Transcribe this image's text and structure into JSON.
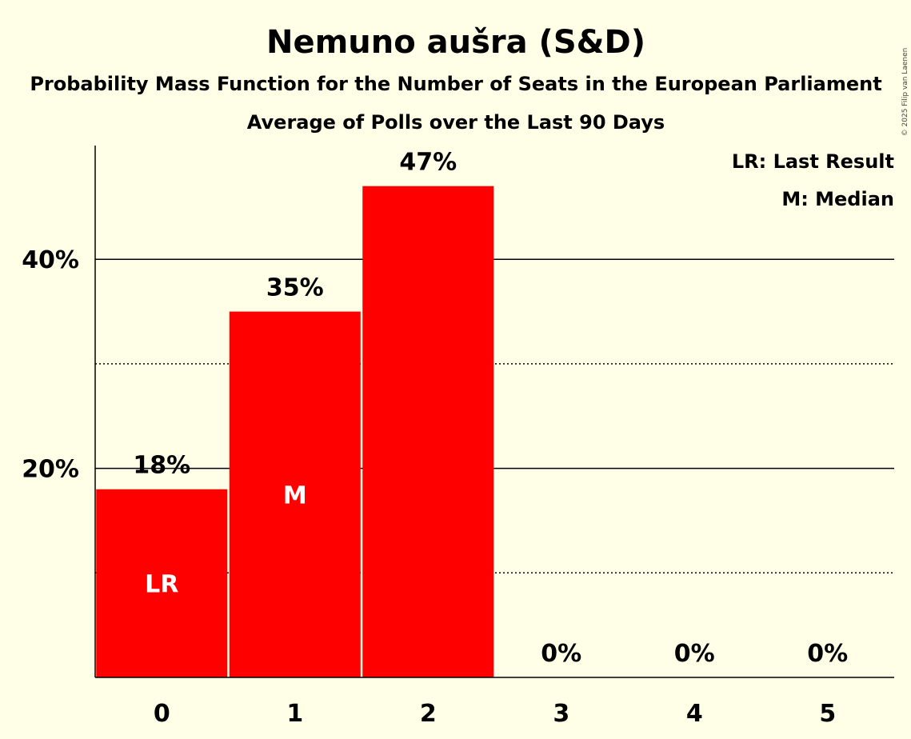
{
  "copyright": "© 2025 Filip van Laenen",
  "colors": {
    "background": "#FFFEE6",
    "bar": "#FF0000",
    "axis": "#000000"
  },
  "chart_data": {
    "type": "bar",
    "title": "Nemuno aušra (S&D)",
    "subtitle": "Probability Mass Function for the Number of Seats in the European Parliament",
    "subtitle2": "Average of Polls over the Last 90 Days",
    "xlabel": "",
    "ylabel": "",
    "categories": [
      "0",
      "1",
      "2",
      "3",
      "4",
      "5"
    ],
    "values": [
      18,
      35,
      47,
      0,
      0,
      0
    ],
    "value_labels": [
      "18%",
      "35%",
      "47%",
      "0%",
      "0%",
      "0%"
    ],
    "ylim": [
      0,
      51
    ],
    "yticks": [
      {
        "value": 20,
        "label": "20%"
      },
      {
        "value": 40,
        "label": "40%"
      }
    ],
    "gridlines": {
      "solid": [
        20,
        40
      ],
      "dotted": [
        10,
        30
      ]
    },
    "bar_markers": [
      {
        "index": 0,
        "text": "LR"
      },
      {
        "index": 1,
        "text": "M"
      }
    ],
    "legend": {
      "position": "top-right",
      "entries": [
        "LR: Last Result",
        "M: Median"
      ]
    }
  }
}
